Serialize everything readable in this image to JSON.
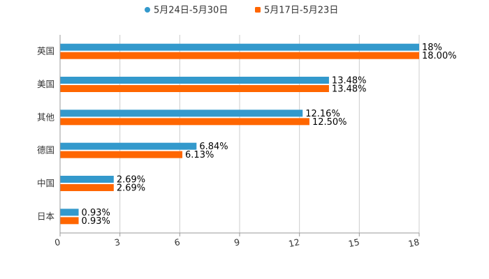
{
  "chart_data": {
    "type": "bar",
    "orientation": "horizontal",
    "categories": [
      "英国",
      "美国",
      "其他",
      "德国",
      "中国",
      "日本"
    ],
    "series": [
      {
        "name": "5月24日-5月30日",
        "color": "#3399cc",
        "values": [
          18,
          13.48,
          12.16,
          6.84,
          2.69,
          0.93
        ],
        "labels": [
          "18%",
          "13.48%",
          "12.16%",
          "6.84%",
          "2.69%",
          "0.93%"
        ]
      },
      {
        "name": "5月17日-5月23日",
        "color": "#ff6600",
        "values": [
          18.0,
          13.48,
          12.5,
          6.13,
          2.69,
          0.93
        ],
        "labels": [
          "18.00%",
          "13.48%",
          "12.50%",
          "6.13%",
          "2.69%",
          "0.93%"
        ]
      }
    ],
    "xlim": [
      0,
      18
    ],
    "xticks": [
      "0",
      "3",
      "6",
      "9",
      "12",
      "15",
      "18"
    ],
    "xtick_values": [
      0,
      3,
      6,
      9,
      12,
      15,
      18
    ],
    "grid": true,
    "legend": "top-center",
    "title": "",
    "xlabel": "",
    "ylabel": ""
  }
}
